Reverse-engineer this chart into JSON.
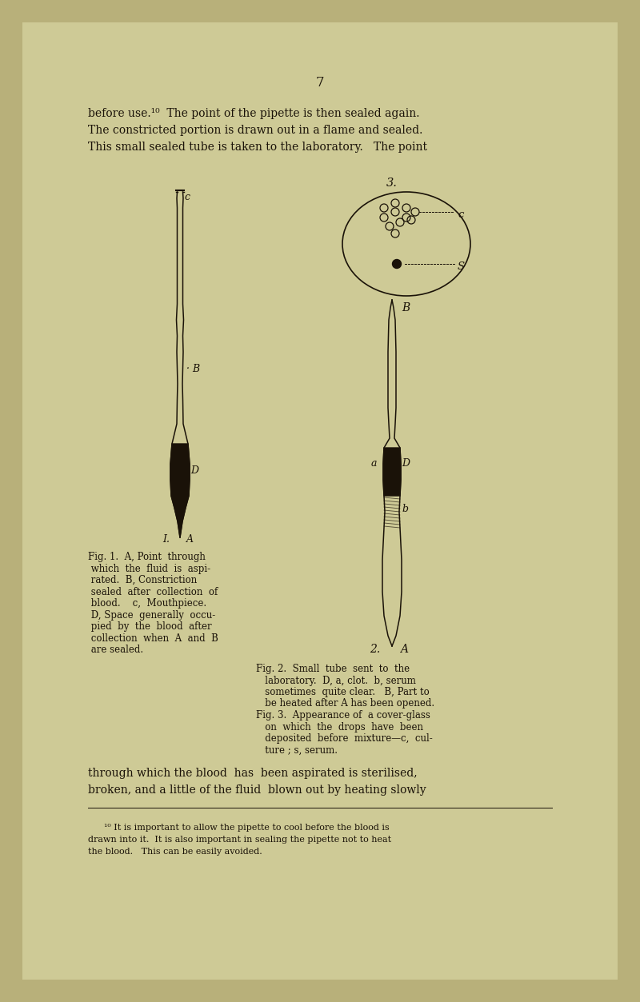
{
  "bg_outer": "#b8b07a",
  "bg_page": "#d6d09a",
  "bg_inner": "#ceca96",
  "text_color": "#1a1208",
  "page_num": "7",
  "top_text_lines": [
    "before use.¹⁰  The point of the pipette is then sealed again.",
    "The constricted portion is drawn out in a flame and sealed.",
    "This small sealed tube is taken to the laboratory.   The point"
  ],
  "bottom_text_lines": [
    "through which the blood  has  been aspirated is sterilised,",
    "broken, and a little of the fluid  blown out by heating slowly"
  ],
  "fig1_caption_lines": [
    "Fig. 1.  A, Point  through",
    " which  the  fluid  is  aspi-",
    " rated.  B, Constriction",
    " sealed  after  collection  of",
    " blood.    c,  Mouthpiece.",
    " D, Space  generally  occu-",
    " pied  by  the  blood  after",
    " collection  when  A  and  B",
    " are sealed."
  ],
  "fig2_caption_lines": [
    "Fig. 2.  Small  tube  sent  to  the",
    "   laboratory.  D, a, clot.  b, serum",
    "   sometimes  quite clear.   B, Part to",
    "   be heated after A has been opened.",
    "Fig. 3.  Appearance of  a cover-glass",
    "   on  which  the  drops  have  been",
    "   deposited  before  mixture—c,  cul-",
    "   ture ; s, serum."
  ],
  "footnote_lines": [
    "¹⁰ It is important to allow the pipette to cool before the blood is",
    "drawn into it.  It is also important in sealing the pipette not to heat",
    "the blood.   This can be easily avoided."
  ]
}
